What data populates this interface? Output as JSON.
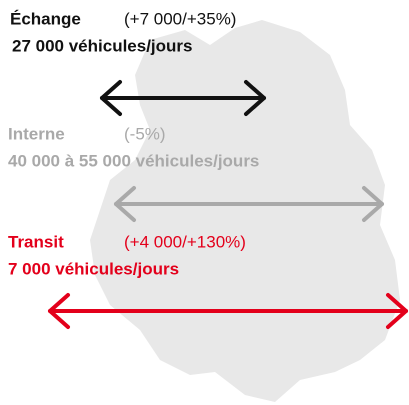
{
  "flows": [
    {
      "label": "Échange",
      "change": "(+7 000/+35%)",
      "volume": "27 000 véhicules/jours"
    },
    {
      "label": "Interne",
      "change": "(-5%)",
      "volume": "40 000 à 55 000 véhicules/jours"
    },
    {
      "label": "Transit",
      "change": "(+4 000/+130%)",
      "volume": "7 000 véhicules/jours"
    }
  ]
}
